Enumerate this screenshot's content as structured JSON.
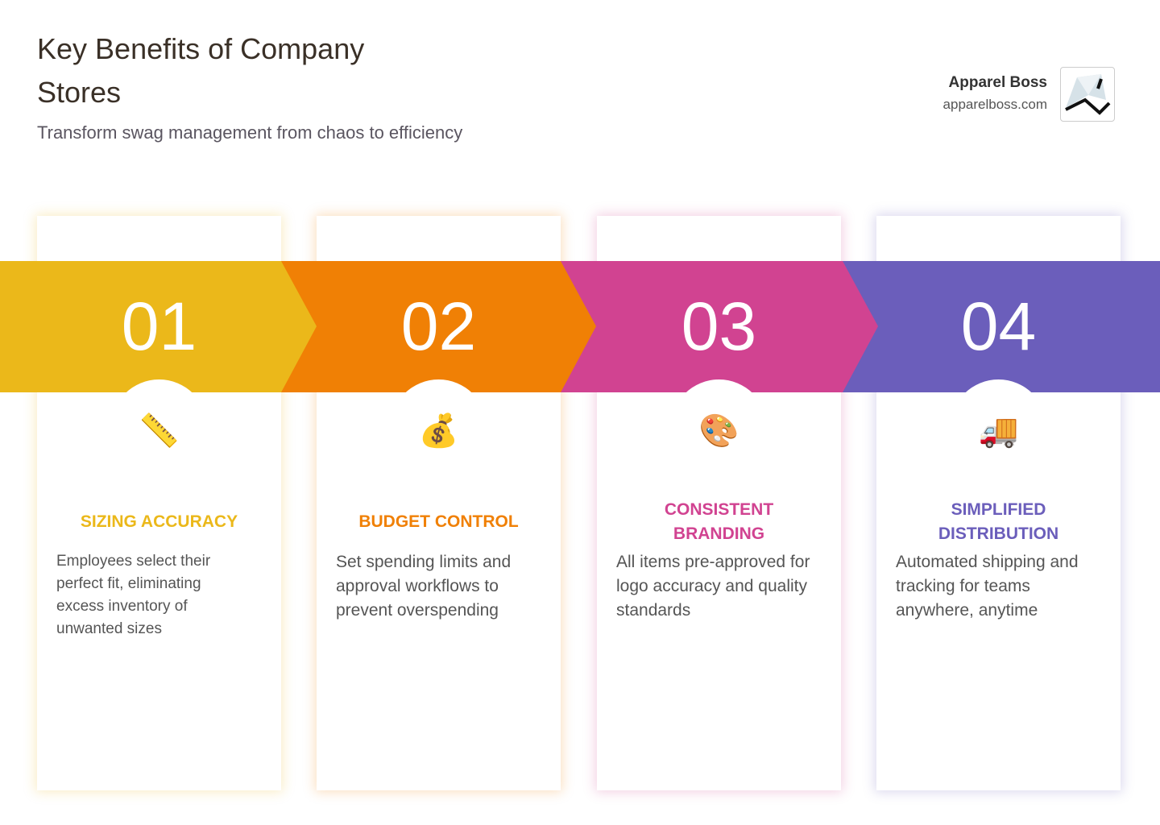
{
  "header": {
    "title": "Key Benefits of Company Stores",
    "subtitle": "Transform swag management from chaos to efficiency"
  },
  "brand": {
    "name": "Apparel Boss",
    "url": "apparelboss.com"
  },
  "cards": [
    {
      "number": "01",
      "icon": "📏",
      "title": "SIZING ACCURACY",
      "description": "Employees select their perfect fit, eliminating excess inventory of unwanted sizes",
      "color": "#ebb81a"
    },
    {
      "number": "02",
      "icon": "💰",
      "title": "BUDGET CONTROL",
      "description": "Set spending limits and approval workflows to prevent overspending",
      "color": "#f08005"
    },
    {
      "number": "03",
      "icon": "🎨",
      "title": "CONSISTENT BRANDING",
      "description": "All items pre-approved for logo accuracy and quality standards",
      "color": "#d14391"
    },
    {
      "number": "04",
      "icon": "🚚",
      "title": "SIMPLIFIED DISTRIBUTION",
      "description": "Automated shipping and tracking for teams anywhere, anytime",
      "color": "#6b5ebb"
    }
  ]
}
